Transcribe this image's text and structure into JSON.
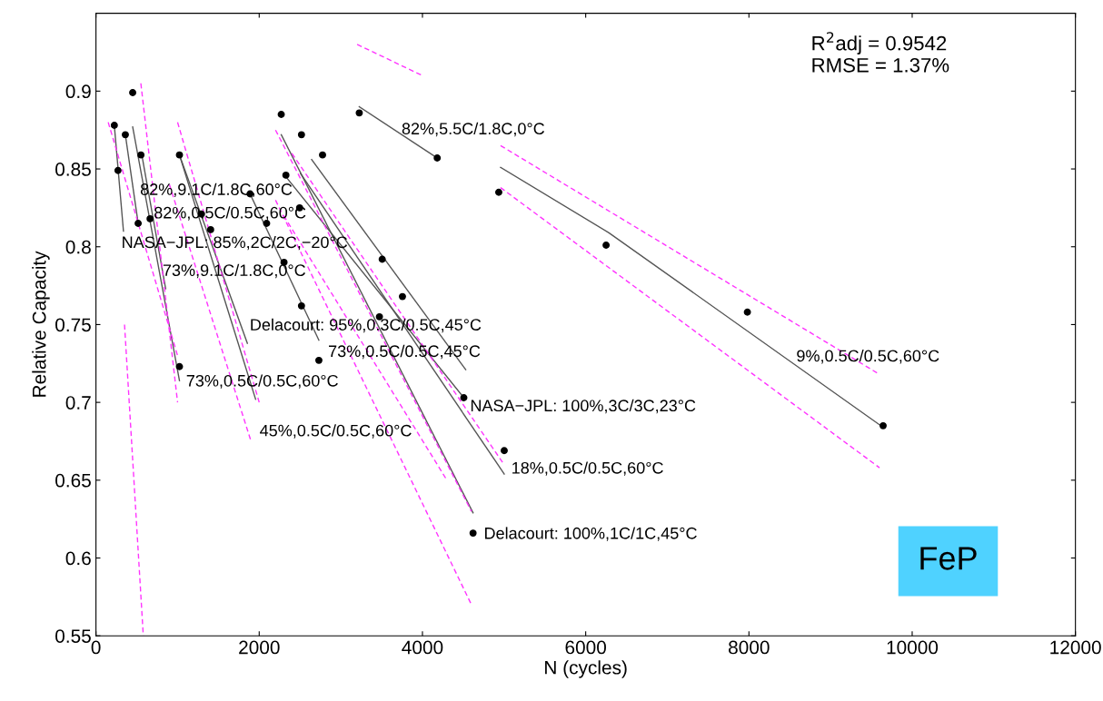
{
  "chart_data": {
    "type": "scatter",
    "xlabel": "N (cycles)",
    "ylabel": "Relative Capacity",
    "xlim": [
      0,
      12000
    ],
    "ylim": [
      0.55,
      0.95
    ],
    "xticks": [
      0,
      2000,
      4000,
      6000,
      8000,
      10000,
      12000
    ],
    "yticks": [
      0.55,
      0.6,
      0.65,
      0.7,
      0.75,
      0.8,
      0.85,
      0.9
    ],
    "grid": false,
    "legend": false,
    "marker": "circle",
    "line_style": "solid",
    "series": [
      {
        "color": "#000000",
        "x": [
          225,
          270,
          360,
          450,
          551,
          1023,
          517,
          663,
          1023,
          1888,
          1293,
          1405,
          2091,
          2304,
          2518,
          2731,
          2270,
          2518,
          2776,
          2327,
          2495,
          3507,
          3755,
          3473,
          3226,
          4181,
          4935,
          6250,
          4507,
          7981,
          9644,
          5002,
          4620
        ],
        "values": [
          0.878,
          0.849,
          0.872,
          0.899,
          0.859,
          0.859,
          0.815,
          0.818,
          0.723,
          0.834,
          0.821,
          0.811,
          0.815,
          0.79,
          0.762,
          0.727,
          0.885,
          0.872,
          0.859,
          0.846,
          0.825,
          0.792,
          0.768,
          0.755,
          0.886,
          0.857,
          0.835,
          0.801,
          0.703,
          0.758,
          0.685,
          0.669,
          0.616
        ]
      },
      {
        "type": "line",
        "color": "#555555",
        "marker": "none",
        "x": [
          225,
          337
        ],
        "values": [
          0.878,
          0.81
        ]
      },
      {
        "type": "line",
        "color": "#555555",
        "marker": "none",
        "x": [
          360,
          517
        ],
        "values": [
          0.872,
          0.815
        ]
      },
      {
        "type": "line",
        "color": "#555555",
        "marker": "none",
        "x": [
          450,
          1023
        ],
        "values": [
          0.877,
          0.714
        ]
      },
      {
        "type": "line",
        "color": "#555555",
        "marker": "none",
        "x": [
          562,
          854
        ],
        "values": [
          0.859,
          0.773
        ]
      },
      {
        "type": "line",
        "color": "#555555",
        "marker": "none",
        "x": [
          1023,
          1855
        ],
        "values": [
          0.859,
          0.738
        ]
      },
      {
        "type": "line",
        "color": "#555555",
        "marker": "none",
        "x": [
          1023,
          1956
        ],
        "values": [
          0.859,
          0.702
        ]
      },
      {
        "type": "line",
        "color": "#555555",
        "marker": "none",
        "x": [
          1888,
          2731
        ],
        "values": [
          0.834,
          0.74
        ]
      },
      {
        "type": "line",
        "color": "#555555",
        "marker": "none",
        "x": [
          2270,
          4620
        ],
        "values": [
          0.872,
          0.629
        ]
      },
      {
        "type": "line",
        "color": "#555555",
        "marker": "none",
        "x": [
          2507,
          5002
        ],
        "values": [
          0.847,
          0.654
        ]
      },
      {
        "type": "line",
        "color": "#555555",
        "marker": "none",
        "x": [
          2642,
          4530
        ],
        "values": [
          0.856,
          0.721
        ]
      },
      {
        "type": "line",
        "color": "#555555",
        "marker": "none",
        "x": [
          2327,
          4507
        ],
        "values": [
          0.845,
          0.703
        ]
      },
      {
        "type": "line",
        "color": "#555555",
        "marker": "none",
        "x": [
          3226,
          4181
        ],
        "values": [
          0.89,
          0.857
        ]
      },
      {
        "type": "line",
        "color": "#555555",
        "marker": "none",
        "x": [
          4957,
          6284,
          9644
        ],
        "values": [
          0.851,
          0.809,
          0.684
        ]
      },
      {
        "type": "line",
        "color": "#ff33ff",
        "marker": "none",
        "line_style": "dashed",
        "x": [
          150,
          1000
        ],
        "values": [
          0.88,
          0.73
        ]
      },
      {
        "type": "line",
        "color": "#ff33ff",
        "marker": "none",
        "line_style": "dashed",
        "x": [
          550,
          1000
        ],
        "values": [
          0.905,
          0.7
        ]
      },
      {
        "type": "line",
        "color": "#ff33ff",
        "marker": "none",
        "line_style": "dashed",
        "x": [
          350,
          580
        ],
        "values": [
          0.75,
          0.55
        ]
      },
      {
        "type": "line",
        "color": "#ff33ff",
        "marker": "none",
        "line_style": "dashed",
        "x": [
          1000,
          2000
        ],
        "values": [
          0.88,
          0.7
        ]
      },
      {
        "type": "line",
        "color": "#ff33ff",
        "marker": "none",
        "line_style": "dashed",
        "x": [
          900,
          1900
        ],
        "values": [
          0.84,
          0.675
        ]
      },
      {
        "type": "line",
        "color": "#ff33ff",
        "marker": "none",
        "line_style": "dashed",
        "x": [
          2200,
          4600
        ],
        "values": [
          0.875,
          0.63
        ]
      },
      {
        "type": "line",
        "color": "#ff33ff",
        "marker": "none",
        "line_style": "dashed",
        "x": [
          2200,
          4600
        ],
        "values": [
          0.83,
          0.57
        ]
      },
      {
        "type": "line",
        "color": "#ff33ff",
        "marker": "none",
        "line_style": "dashed",
        "x": [
          2400,
          5000
        ],
        "values": [
          0.86,
          0.66
        ]
      },
      {
        "type": "line",
        "color": "#ff33ff",
        "marker": "none",
        "line_style": "dashed",
        "x": [
          2300,
          4300
        ],
        "values": [
          0.82,
          0.65
        ]
      },
      {
        "type": "line",
        "color": "#ff33ff",
        "marker": "none",
        "line_style": "dashed",
        "x": [
          3200,
          4000
        ],
        "values": [
          0.93,
          0.91
        ]
      },
      {
        "type": "line",
        "color": "#ff33ff",
        "marker": "none",
        "line_style": "dashed",
        "x": [
          4957,
          9600
        ],
        "values": [
          0.865,
          0.718
        ]
      },
      {
        "type": "line",
        "color": "#ff33ff",
        "marker": "none",
        "line_style": "dashed",
        "x": [
          4957,
          9600
        ],
        "values": [
          0.838,
          0.658
        ]
      }
    ],
    "annotations": [
      "82%,5.5C/1.8C,0°C",
      "82%,9.1C/1.8C,60°C",
      "82%,0.5C/0.5C,60°C",
      "NASA−JPL: 85%,2C/2C,−20°C",
      "73%,9.1C/1.8C,0°C",
      "Delacourt: 95%,0.3C/0.5C,45°C",
      "73%,0.5C/0.5C,45°C",
      "73%,0.5C/0.5C,60°C",
      "9%,0.5C/0.5C,60°C",
      "NASA−JPL: 100%,3C/3C,23°C",
      "45%,0.5C/0.5C,60°C",
      "18%,0.5C/0.5C,60°C",
      "Delacourt: 100%,1C/1C,45°C",
      "R$^{2}$adj = 0.9542\nRMSE = 1.37%",
      "FeP"
    ]
  }
}
